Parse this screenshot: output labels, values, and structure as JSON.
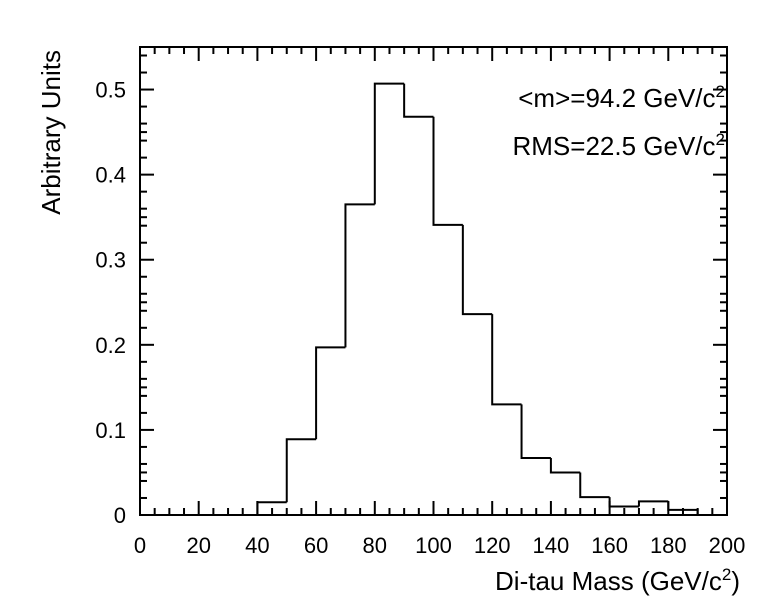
{
  "chart_data": {
    "type": "bar",
    "style": "step-histogram",
    "xlabel": "Di-tau Mass (GeV/c",
    "xlabel_sup": "2",
    "xlabel_suffix": ")",
    "ylabel": "Arbitrary Units",
    "xlim": [
      0,
      200
    ],
    "ylim": [
      0,
      0.55
    ],
    "x_ticks": [
      0,
      20,
      40,
      60,
      80,
      100,
      120,
      140,
      160,
      180,
      200
    ],
    "x_tick_labels": [
      "0",
      "20",
      "40",
      "60",
      "80",
      "100",
      "120",
      "140",
      "160",
      "180",
      "200"
    ],
    "y_ticks": [
      0,
      0.1,
      0.2,
      0.3,
      0.4,
      0.5
    ],
    "y_tick_labels": [
      "0",
      "0.1",
      "0.2",
      "0.3",
      "0.4",
      "0.5"
    ],
    "bin_edges": [
      40,
      50,
      60,
      70,
      80,
      90,
      100,
      110,
      120,
      130,
      140,
      150,
      160,
      170,
      180,
      190
    ],
    "values": [
      0.015,
      0.089,
      0.197,
      0.365,
      0.507,
      0.468,
      0.341,
      0.236,
      0.13,
      0.067,
      0.05,
      0.021,
      0.01,
      0.016,
      0.006
    ],
    "grid": false,
    "annotations": [
      {
        "text": "<m>=94.2 GeV/c",
        "sup": "2"
      },
      {
        "text": "RMS=22.5 GeV/c",
        "sup": "2"
      }
    ]
  }
}
